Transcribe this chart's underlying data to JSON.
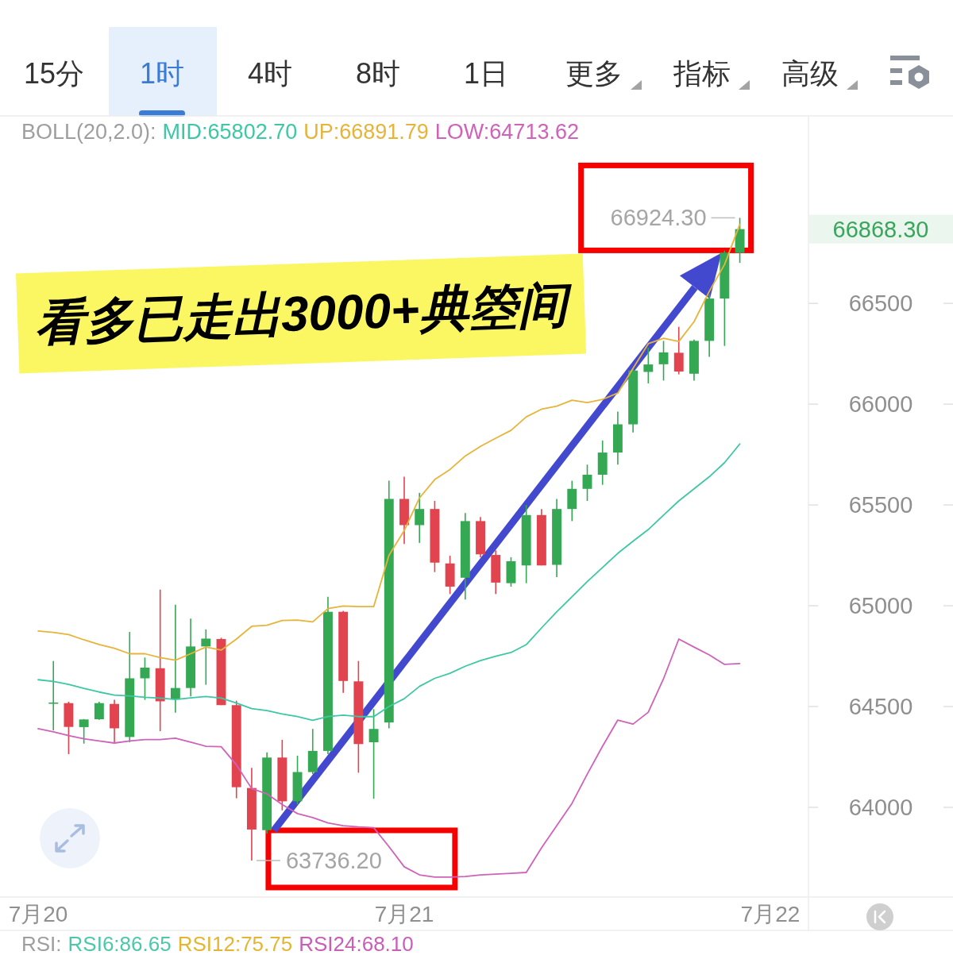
{
  "chart_data": {
    "type": "candlestick",
    "categories": [
      "7月20",
      null,
      null,
      null,
      null,
      null,
      null,
      null,
      null,
      null,
      null,
      null,
      null,
      null,
      null,
      null,
      null,
      null,
      null,
      null,
      null,
      null,
      null,
      null,
      "7月21",
      null,
      null,
      null,
      null,
      null,
      null,
      null,
      null,
      null,
      null,
      null,
      null,
      null,
      null,
      null,
      null,
      null,
      null,
      null,
      null,
      null,
      null,
      null,
      "7月22"
    ],
    "ohlc": [
      null,
      [
        64515,
        64726,
        64382,
        64520
      ],
      [
        64517,
        64524,
        64264,
        64399
      ],
      [
        64398,
        64438,
        64316,
        64436
      ],
      [
        64437,
        64524,
        64434,
        64517
      ],
      [
        64513,
        64534,
        64323,
        64392
      ],
      [
        64349,
        64870,
        64323,
        64640
      ],
      [
        64640,
        64743,
        64533,
        64693
      ],
      [
        64690,
        65080,
        64378,
        64526
      ],
      [
        64537,
        65005,
        64470,
        64592
      ],
      [
        64592,
        64936,
        64550,
        64798
      ],
      [
        64798,
        64883,
        64608,
        64837
      ],
      [
        64835,
        64841,
        64507,
        64507
      ],
      [
        64507,
        64529,
        64045,
        64100
      ],
      [
        64096,
        64196,
        63736.2,
        63890
      ],
      [
        63887,
        64273,
        63870,
        64247
      ],
      [
        64247,
        64335,
        63985,
        64030
      ],
      [
        64030,
        64256,
        64014,
        64175
      ],
      [
        64175,
        64389,
        64165,
        64280
      ],
      [
        64280,
        65045,
        64264,
        64970
      ],
      [
        64970,
        64975,
        64568,
        64627
      ],
      [
        64625,
        64726,
        64172,
        64314
      ],
      [
        64323,
        64487,
        64043,
        64389
      ],
      [
        64421,
        65620,
        64392,
        65530
      ],
      [
        65530,
        65640,
        65306,
        65400
      ],
      [
        65400,
        65560,
        65312,
        65480
      ],
      [
        65480,
        65520,
        65167,
        65214
      ],
      [
        65210,
        65248,
        65058,
        65095
      ],
      [
        65139,
        65460,
        65031,
        65420
      ],
      [
        65420,
        65440,
        65240,
        65255
      ],
      [
        65252,
        65275,
        65058,
        65115
      ],
      [
        65112,
        65241,
        65095,
        65221
      ],
      [
        65200,
        65500,
        65112,
        65450
      ],
      [
        65450,
        65480,
        65200,
        65200
      ],
      [
        65203,
        65530,
        65142,
        65480
      ],
      [
        65480,
        65620,
        65420,
        65580
      ],
      [
        65580,
        65700,
        65520,
        65650
      ],
      [
        65650,
        65820,
        65600,
        65760
      ],
      [
        65760,
        65963,
        65700,
        65900
      ],
      [
        65900,
        66175,
        65860,
        66167
      ],
      [
        66160,
        66280,
        66103,
        66197
      ],
      [
        66198,
        66314,
        66117,
        66257
      ],
      [
        66255,
        66384,
        66148,
        66162
      ],
      [
        66151,
        66320,
        66117,
        66314
      ],
      [
        66314,
        66545,
        66235,
        66524
      ],
      [
        66524,
        66762,
        66289,
        66751
      ],
      [
        66751,
        66924.3,
        66701,
        66868.3
      ],
      null,
      null
    ],
    "colors": [
      null,
      "#35a853",
      "#e1434f",
      "#35a853",
      "#35a853",
      "#e1434f",
      "#35a853",
      "#35a853",
      "#e1434f",
      "#35a853",
      "#35a853",
      "#35a853",
      "#e1434f",
      "#e1434f",
      "#e1434f",
      "#35a853",
      "#e1434f",
      "#35a853",
      "#35a853",
      "#35a853",
      "#e1434f",
      "#e1434f",
      "#35a853",
      "#35a853",
      "#e1434f",
      "#35a853",
      "#e1434f",
      "#e1434f",
      "#35a853",
      "#e1434f",
      "#e1434f",
      "#35a853",
      "#35a853",
      "#e1434f",
      "#35a853",
      "#35a853",
      "#35a853",
      "#35a853",
      "#35a853",
      "#35a853",
      "#35a853",
      "#35a853",
      "#e1434f",
      "#35a853",
      "#35a853",
      "#35a853",
      "#35a853",
      null,
      null
    ],
    "series": [
      {
        "type": "line",
        "name": "MID:65802.70",
        "color": "#3ec7a4",
        "values": [
          64633,
          64625,
          64610,
          64590,
          64572,
          64557,
          64553,
          64546,
          64542,
          64535,
          64543,
          64550,
          64542,
          64517,
          64490,
          64480,
          64463,
          64450,
          64432,
          64450,
          64457,
          64450,
          64450,
          64500,
          64539,
          64600,
          64640,
          64665,
          64700,
          64728,
          64750,
          64768,
          64807,
          64890,
          64970,
          65045,
          65120,
          65190,
          65260,
          65320,
          65378,
          65450,
          65520,
          65580,
          65640,
          65710,
          65802.7,
          null,
          null
        ]
      },
      {
        "type": "line",
        "name": "UP:66891.79",
        "color": "#e6b43a",
        "values": [
          64875,
          64868,
          64857,
          64831,
          64808,
          64789,
          64762,
          64762,
          64743,
          64730,
          64762,
          64795,
          64780,
          64835,
          64898,
          64903,
          64927,
          64929,
          64920,
          64986,
          64999,
          64996,
          64996,
          65250,
          65373,
          65535,
          65626,
          65676,
          65743,
          65791,
          65831,
          65870,
          65937,
          65975,
          65990,
          66020,
          66008,
          66024,
          66055,
          66178,
          66300,
          66327,
          66311,
          66409,
          66560,
          66693,
          66891.79,
          null,
          null
        ]
      },
      {
        "type": "line",
        "name": "LOW:64713.62",
        "color": "#cf62b9",
        "values": [
          64390,
          64375,
          64356,
          64340,
          64329,
          64319,
          64329,
          64336,
          64336,
          64343,
          64323,
          64303,
          64301,
          64211,
          64093,
          64067,
          64014,
          63969,
          63949,
          63923,
          63909,
          63903,
          63899,
          63805,
          63705,
          63665,
          63654,
          63654,
          63657,
          63665,
          63669,
          63673,
          63677,
          63799,
          63909,
          64020,
          64165,
          64303,
          64433,
          64413,
          64472,
          64638,
          64835,
          64795,
          64756,
          64709,
          64713.62,
          null,
          null
        ]
      }
    ],
    "legend": "top left",
    "legend_title": "BOLL(20,2.0):",
    "ylim": [
      63555,
      67430
    ],
    "yticks": [
      64000,
      64500,
      65000,
      65500,
      66000,
      66500
    ],
    "annotations": [
      "15分",
      "1时",
      "4时",
      "8时",
      "1日",
      "更多",
      "指标",
      "高级",
      "看多已走出3000+典箜间",
      "RSI:",
      "RSI6:86.65",
      "RSI12:75.75",
      "RSI24:68.10",
      "66868.30",
      "66924.30",
      "63736.20"
    ]
  }
}
